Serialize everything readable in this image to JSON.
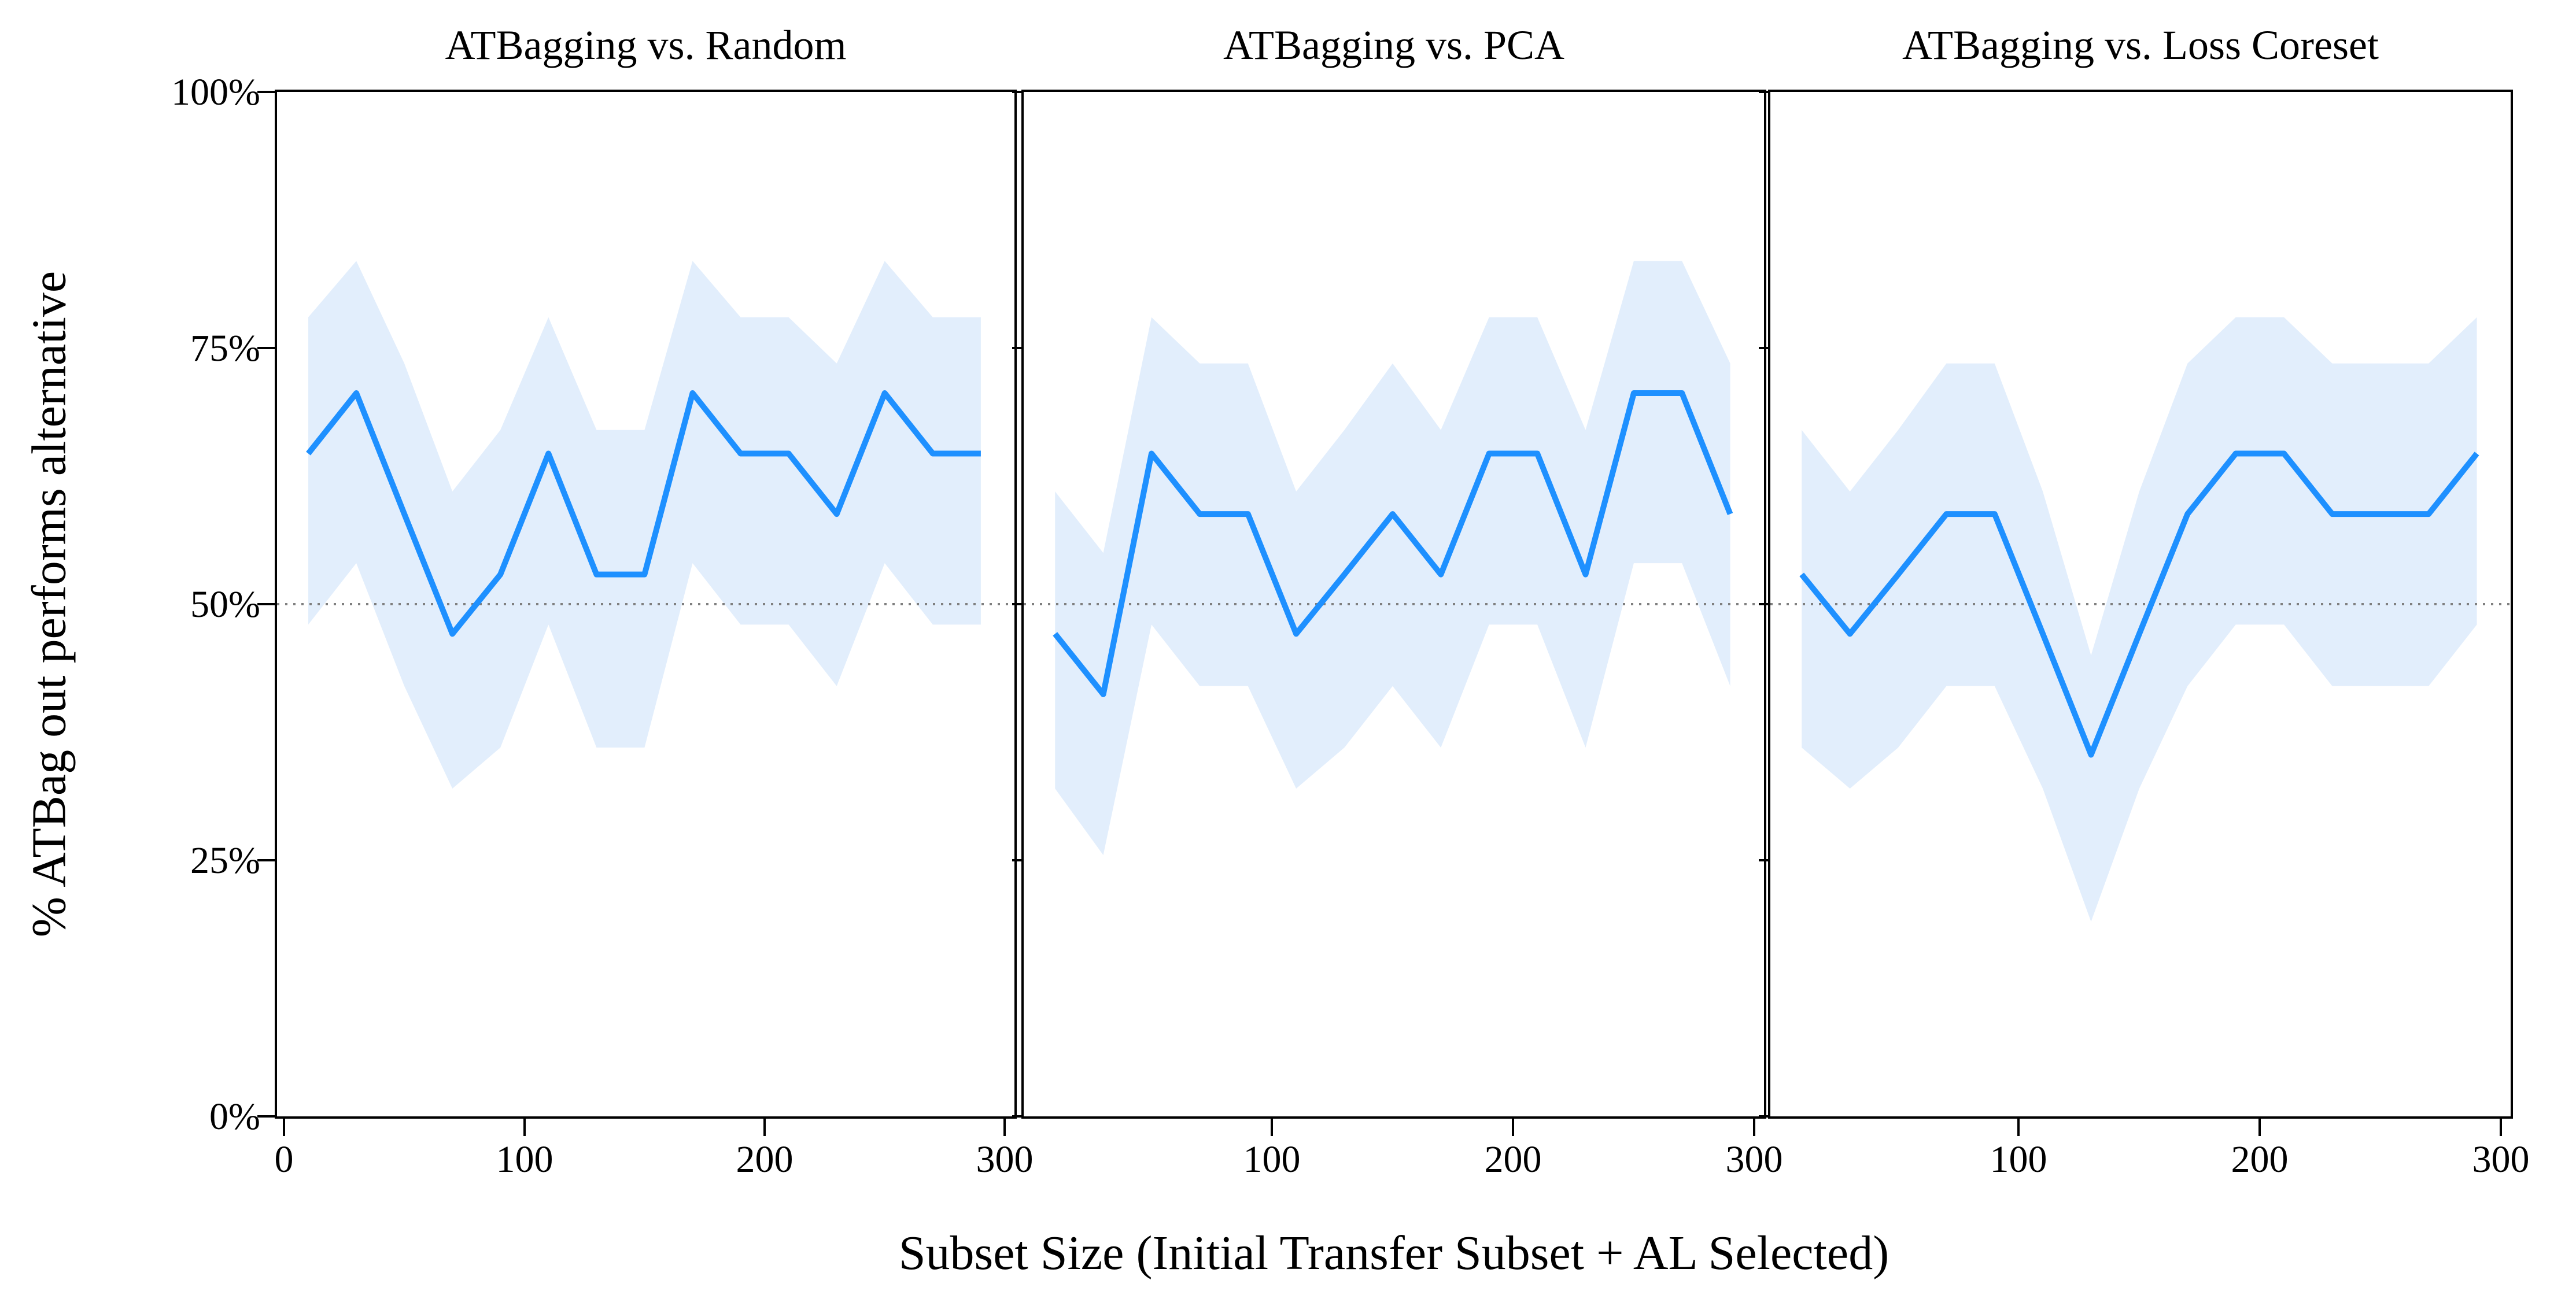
{
  "chart_data": {
    "type": "line",
    "figure_kind": "three-panel line chart with confidence bands",
    "xlabel": "Subset Size (Initial Transfer Subset + AL Selected)",
    "ylabel": "% ATBag out performs alternative",
    "ylim": [
      0,
      100
    ],
    "xlim": [
      -3,
      304
    ],
    "grid": false,
    "legend": "none",
    "reference_line": {
      "value": 50,
      "style": "dotted",
      "color": "#7f7f7f"
    },
    "colors": {
      "line": "#1E90FF",
      "band": "#E2EEFC",
      "spine": "#000000",
      "background": "#ffffff"
    },
    "yticks": [
      {
        "v": 0,
        "label": "0%"
      },
      {
        "v": 25,
        "label": "25%"
      },
      {
        "v": 50,
        "label": "50%"
      },
      {
        "v": 75,
        "label": "75%"
      },
      {
        "v": 100,
        "label": "100%"
      }
    ],
    "x": [
      10,
      30,
      50,
      70,
      90,
      110,
      130,
      150,
      170,
      190,
      210,
      230,
      250,
      270,
      290
    ],
    "panels": [
      {
        "title": "ATBagging vs. Random",
        "xticks": [
          {
            "v": 0,
            "label": "0"
          },
          {
            "v": 100,
            "label": "100"
          },
          {
            "v": 200,
            "label": "200"
          },
          {
            "v": 300,
            "label": "300"
          }
        ],
        "values": [
          64.7,
          70.6,
          58.8,
          47.1,
          52.9,
          64.7,
          52.9,
          52.9,
          70.6,
          64.7,
          64.7,
          58.8,
          70.6,
          64.7,
          64.7
        ],
        "band_upper": [
          78,
          83.5,
          73.5,
          61,
          67,
          78,
          67,
          67,
          83.5,
          78,
          78,
          73.5,
          83.5,
          78,
          78
        ],
        "band_lower": [
          48,
          54,
          42,
          32,
          36,
          48,
          36,
          36,
          54,
          48,
          48,
          42,
          54,
          48,
          48
        ]
      },
      {
        "title": "ATBagging vs. PCA",
        "xticks": [
          {
            "v": 100,
            "label": "100"
          },
          {
            "v": 200,
            "label": "200"
          },
          {
            "v": 300,
            "label": "300"
          }
        ],
        "values": [
          47.1,
          41.2,
          64.7,
          58.8,
          58.8,
          47.1,
          52.9,
          58.8,
          52.9,
          64.7,
          64.7,
          52.9,
          70.6,
          70.6,
          58.8
        ],
        "band_upper": [
          61,
          55,
          78,
          73.5,
          73.5,
          61,
          67,
          73.5,
          67,
          78,
          78,
          67,
          83.5,
          83.5,
          73.5
        ],
        "band_lower": [
          32,
          25.5,
          48,
          42,
          42,
          32,
          36,
          42,
          36,
          48,
          48,
          36,
          54,
          54,
          42
        ]
      },
      {
        "title": "ATBagging vs. Loss Coreset",
        "xticks": [
          {
            "v": 100,
            "label": "100"
          },
          {
            "v": 200,
            "label": "200"
          },
          {
            "v": 300,
            "label": "300"
          }
        ],
        "values": [
          52.9,
          47.1,
          52.9,
          58.8,
          58.8,
          47.1,
          35.3,
          47.1,
          58.8,
          64.7,
          64.7,
          58.8,
          58.8,
          58.8,
          64.7
        ],
        "band_upper": [
          67,
          61,
          67,
          73.5,
          73.5,
          61,
          45,
          61,
          73.5,
          78,
          78,
          73.5,
          73.5,
          73.5,
          78
        ],
        "band_lower": [
          36,
          32,
          36,
          42,
          42,
          32,
          19,
          32,
          42,
          48,
          48,
          42,
          42,
          42,
          48
        ]
      }
    ]
  }
}
